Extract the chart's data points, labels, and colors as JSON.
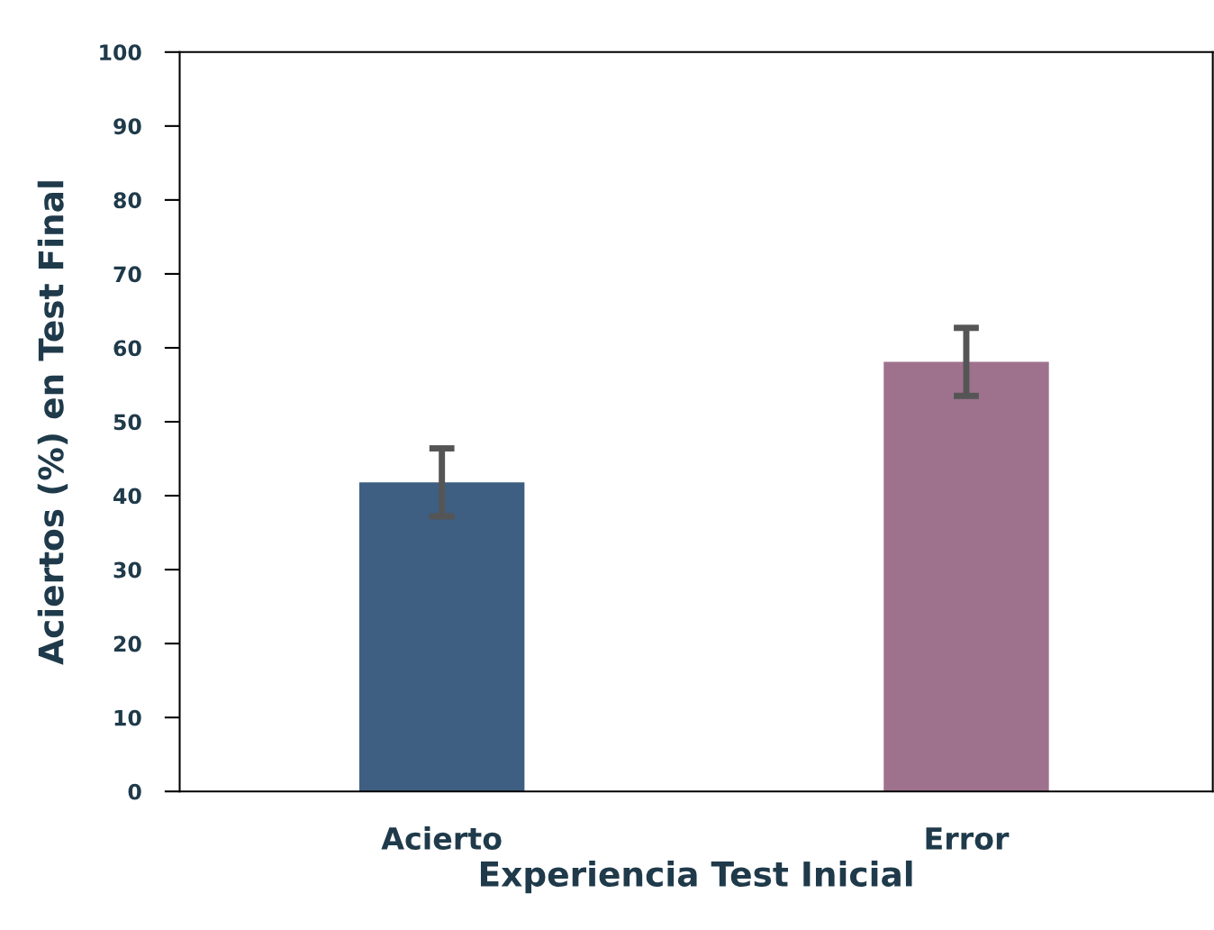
{
  "chart_data": {
    "type": "bar",
    "xlabel": "Experiencia Test Inicial",
    "ylabel": "Aciertos (%) en Test Final",
    "categories": [
      "Acierto",
      "Error"
    ],
    "values": [
      41.8,
      58.1
    ],
    "colors": [
      "#3e5f82",
      "#9e728d"
    ],
    "errors": [
      4.6,
      4.6
    ],
    "ylim": [
      0,
      100
    ],
    "yticks": [
      0,
      10,
      20,
      30,
      40,
      50,
      60,
      70,
      80,
      90,
      100
    ],
    "grid": false,
    "legend": false
  }
}
